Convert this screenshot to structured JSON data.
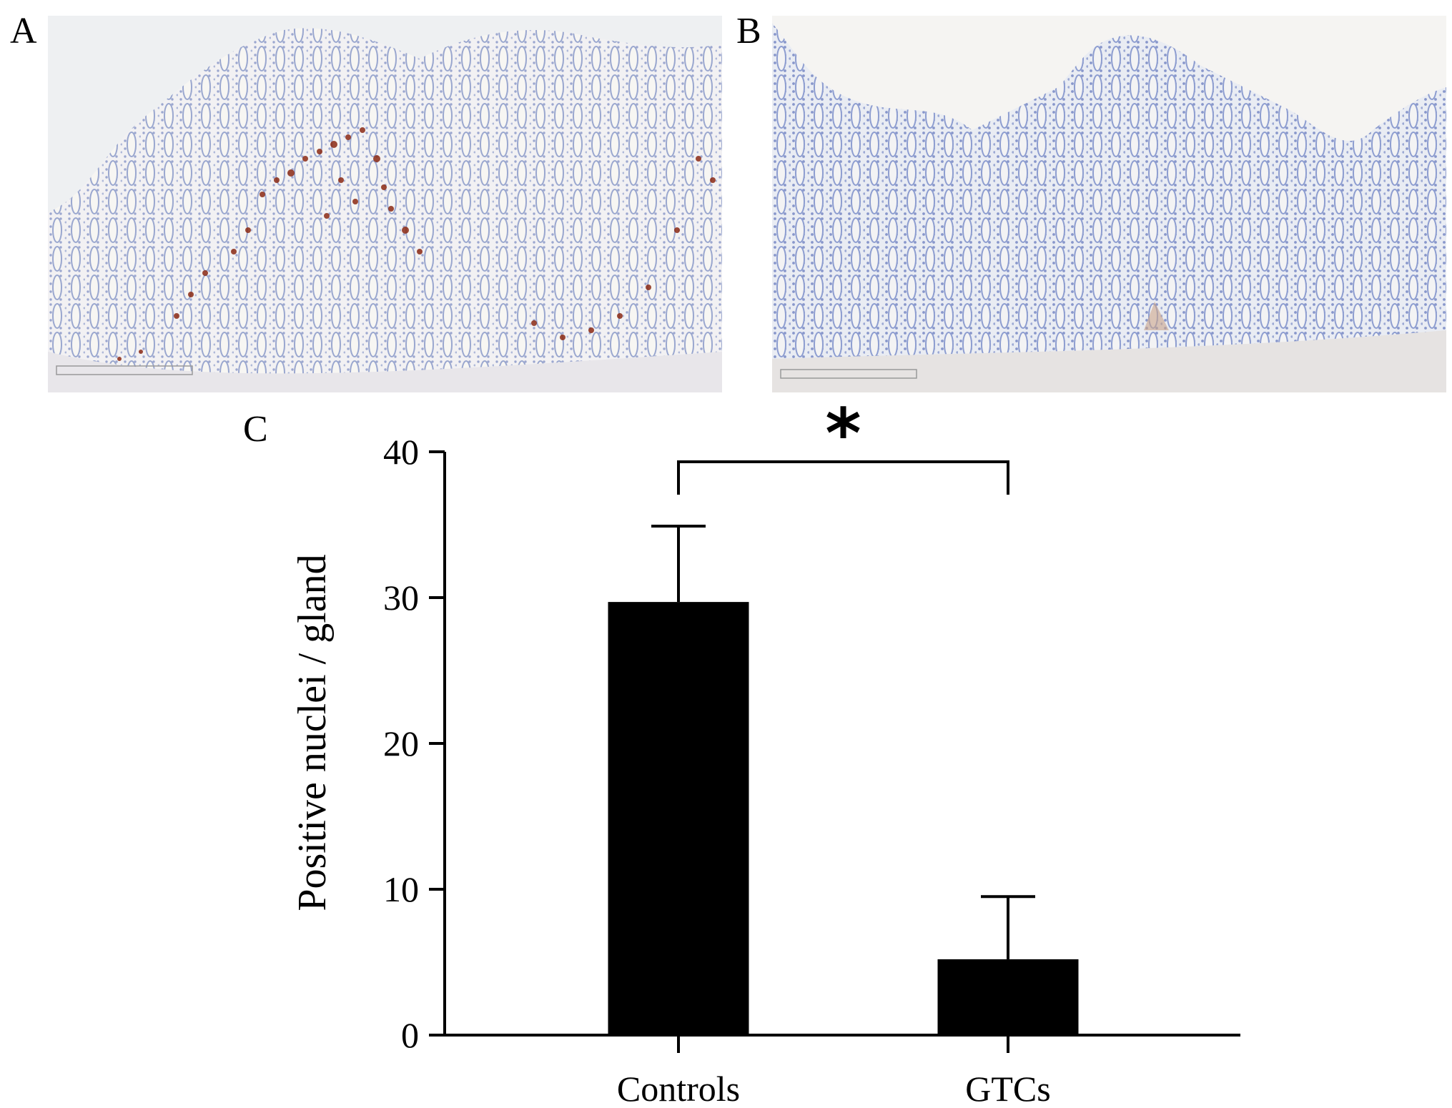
{
  "panels": {
    "a": {
      "letter": "A"
    },
    "b": {
      "letter": "B"
    },
    "c": {
      "letter": "C"
    }
  },
  "micrographs": [
    {
      "panel": "A",
      "stain": "brown nuclear staining on hematoxylin background"
    },
    {
      "panel": "B",
      "stain": "hematoxylin counterstain with little brown staining"
    }
  ],
  "colors": {
    "bar": "#000000",
    "hematoxylin": "#7f8fc2",
    "dab": "#8b2a14",
    "tissue_background": "#eef0f2"
  },
  "chart_data": {
    "type": "bar",
    "categories": [
      "Controls",
      "GTCs"
    ],
    "values": [
      29.7,
      5.2
    ],
    "error_upper": [
      34.9,
      9.5
    ],
    "ylabel": "Positive nuclei / gland",
    "xlabel": "",
    "ylim": [
      0,
      40
    ],
    "yticks": [
      0,
      10,
      20,
      30,
      40
    ],
    "significance": {
      "between": [
        "Controls",
        "GTCs"
      ],
      "label": "*"
    },
    "grid": false
  }
}
